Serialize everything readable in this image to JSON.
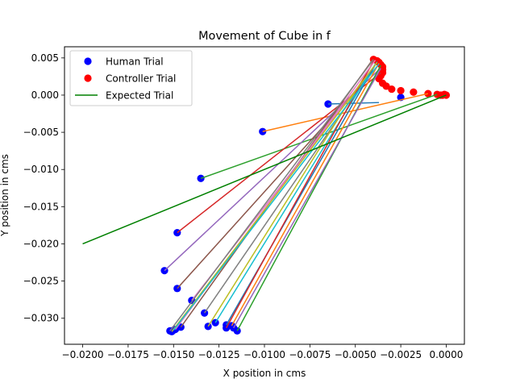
{
  "chart_data": {
    "type": "scatter",
    "title": "Movement of Cube in f",
    "xlabel": "X position in cms",
    "ylabel": "Y position in cms",
    "xlim": [
      -0.021,
      0.001
    ],
    "ylim": [
      -0.0335,
      0.0065
    ],
    "xticks": [
      -0.02,
      -0.0175,
      -0.015,
      -0.0125,
      -0.01,
      -0.0075,
      -0.005,
      -0.0025,
      0.0
    ],
    "xtick_labels": [
      "−0.0200",
      "−0.0175",
      "−0.0150",
      "−0.0125",
      "−0.0100",
      "−0.0075",
      "−0.0050",
      "−0.0025",
      "0.0000"
    ],
    "yticks": [
      0.005,
      0.0,
      -0.005,
      -0.01,
      -0.015,
      -0.02,
      -0.025,
      -0.03
    ],
    "ytick_labels": [
      "0.005",
      "0.000",
      "−0.005",
      "−0.010",
      "−0.015",
      "−0.020",
      "−0.025",
      "−0.030"
    ],
    "grid": false,
    "legend": {
      "placement": "top-left",
      "entries": [
        {
          "label": "Human Trial",
          "kind": "marker",
          "color": "#0000ff"
        },
        {
          "label": "Controller Trial",
          "kind": "marker",
          "color": "#ff0000"
        },
        {
          "label": "Expected Trial",
          "kind": "line",
          "color": "#008000"
        }
      ]
    },
    "expected_trial": {
      "color": "#008000",
      "x": [
        -0.02,
        0.0
      ],
      "y": [
        -0.02,
        0.0
      ]
    },
    "trajectory_colors": [
      "#1f77b4",
      "#ff7f0e",
      "#2ca02c",
      "#d62728",
      "#9467bd",
      "#8c564b",
      "#e377c2",
      "#7f7f7f",
      "#bcbd22",
      "#17becf"
    ],
    "human_trial": {
      "color": "#0000ff",
      "x": [
        -0.0065,
        -0.0101,
        -0.0135,
        -0.0148,
        -0.0155,
        -0.0148,
        -0.014,
        -0.0133,
        -0.0131,
        -0.0127,
        -0.0121,
        -0.0118,
        -0.0115,
        -0.0121,
        -0.0117,
        -0.0146,
        -0.0149,
        -0.0152,
        -0.0151,
        -0.015,
        -0.0025
      ],
      "y": [
        -0.0012,
        -0.0049,
        -0.0112,
        -0.0185,
        -0.0236,
        -0.026,
        -0.0276,
        -0.0293,
        -0.0311,
        -0.0306,
        -0.0309,
        -0.031,
        -0.0317,
        -0.0313,
        -0.0313,
        -0.0312,
        -0.0315,
        -0.0317,
        -0.0318,
        -0.0316,
        -0.0003
      ]
    },
    "controller_trial": {
      "color": "#ff0000",
      "x": [
        -0.004,
        -0.0038,
        -0.0037,
        -0.0036,
        -0.0035,
        -0.0035,
        -0.0035,
        -0.0036,
        -0.0037,
        -0.0035,
        -0.0033,
        -0.003,
        -0.0025,
        -0.0018,
        -0.001,
        -0.0005,
        -0.0002,
        0.0,
        -0.0001,
        -0.0003
      ],
      "y": [
        0.0048,
        0.0046,
        0.0044,
        0.0041,
        0.0038,
        0.0034,
        0.003,
        0.0026,
        0.0022,
        0.0016,
        0.0012,
        0.0008,
        0.0006,
        0.0004,
        0.0002,
        0.0001,
        0.0,
        0.0,
        0.0001,
        0.0
      ]
    },
    "trajectories": [
      {
        "from": [
          -0.0065,
          -0.0012
        ],
        "to": [
          -0.0037,
          -0.001
        ]
      },
      {
        "from": [
          -0.0101,
          -0.0049
        ],
        "to": [
          -0.001,
          0.0002
        ]
      },
      {
        "from": [
          -0.0135,
          -0.0112
        ],
        "to": [
          -0.0005,
          0.0001
        ]
      },
      {
        "from": [
          -0.0148,
          -0.0185
        ],
        "to": [
          -0.0036,
          0.003
        ]
      },
      {
        "from": [
          -0.0155,
          -0.0236
        ],
        "to": [
          -0.0037,
          0.0034
        ]
      },
      {
        "from": [
          -0.0148,
          -0.026
        ],
        "to": [
          -0.0038,
          0.0038
        ]
      },
      {
        "from": [
          -0.014,
          -0.0276
        ],
        "to": [
          -0.0039,
          0.0041
        ]
      },
      {
        "from": [
          -0.0133,
          -0.0293
        ],
        "to": [
          -0.004,
          0.0038
        ]
      },
      {
        "from": [
          -0.0131,
          -0.0311
        ],
        "to": [
          -0.004,
          0.0044
        ]
      },
      {
        "from": [
          -0.0127,
          -0.0306
        ],
        "to": [
          -0.0039,
          0.0042
        ]
      },
      {
        "from": [
          -0.0121,
          -0.0309
        ],
        "to": [
          -0.0038,
          0.0045
        ]
      },
      {
        "from": [
          -0.0118,
          -0.031
        ],
        "to": [
          -0.0037,
          0.0043
        ]
      },
      {
        "from": [
          -0.0115,
          -0.0317
        ],
        "to": [
          -0.0036,
          0.004
        ]
      },
      {
        "from": [
          -0.0121,
          -0.0313
        ],
        "to": [
          -0.004,
          0.0046
        ]
      },
      {
        "from": [
          -0.0117,
          -0.0313
        ],
        "to": [
          -0.0036,
          0.0036
        ]
      },
      {
        "from": [
          -0.0146,
          -0.0312
        ],
        "to": [
          -0.0041,
          0.0046
        ]
      },
      {
        "from": [
          -0.0149,
          -0.0315
        ],
        "to": [
          -0.0039,
          0.0047
        ]
      },
      {
        "from": [
          -0.0152,
          -0.0317
        ],
        "to": [
          -0.004,
          0.0048
        ]
      },
      {
        "from": [
          -0.0151,
          -0.0318
        ],
        "to": [
          -0.0038,
          0.0044
        ]
      },
      {
        "from": [
          -0.015,
          -0.0316
        ],
        "to": [
          -0.0037,
          0.0042
        ]
      }
    ]
  }
}
